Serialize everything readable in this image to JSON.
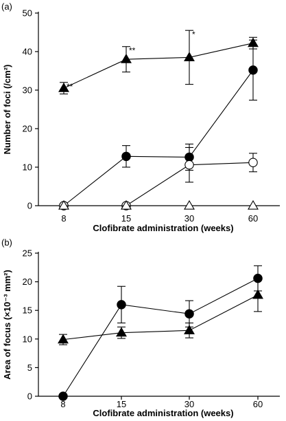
{
  "chart_data": [
    {
      "type": "line",
      "panel_label": "(a)",
      "title": "",
      "xlabel": "Clofibrate administration (weeks)",
      "ylabel": "Number of foci (/cm²)",
      "x_categories": [
        "8",
        "15",
        "30",
        "60"
      ],
      "ylim": [
        0,
        50
      ],
      "yticks": [
        "0",
        "10",
        "20",
        "30",
        "40",
        "50"
      ],
      "grid": false,
      "legend": "none",
      "series": [
        {
          "marker": "filled-triangle",
          "values": [
            30.5,
            38,
            38.5,
            42.2
          ],
          "errors": [
            1.5,
            3.3,
            7,
            1.5
          ],
          "annotations": [
            "**",
            "**",
            "*",
            ""
          ]
        },
        {
          "marker": "filled-circle",
          "values": [
            0,
            12.8,
            12.6,
            35.2
          ],
          "errors": [
            0,
            2.8,
            3.4,
            7.8
          ],
          "annotations": [
            "",
            "",
            "",
            ""
          ]
        },
        {
          "marker": "open-circle",
          "values": [
            0,
            0,
            10.6,
            11.2
          ],
          "errors": [
            0,
            0,
            4.5,
            2.4
          ],
          "annotations": [
            "",
            "",
            "",
            ""
          ]
        },
        {
          "marker": "open-triangle",
          "values": [
            0,
            0,
            0,
            0
          ],
          "errors": [
            0,
            0,
            0,
            0
          ],
          "annotations": [
            "",
            "",
            "",
            ""
          ]
        }
      ]
    },
    {
      "type": "line",
      "panel_label": "(b)",
      "title": "",
      "xlabel": "Clofibrate administration (weeks)",
      "ylabel": "Area of focus (×10⁻³ mm²)",
      "x_categories": [
        "8",
        "15",
        "30",
        "60"
      ],
      "ylim": [
        0,
        25
      ],
      "yticks": [
        "0",
        "5",
        "10",
        "15",
        "20",
        "25"
      ],
      "grid": false,
      "legend": "none",
      "series": [
        {
          "marker": "filled-circle",
          "values": [
            0,
            16,
            14.4,
            20.6
          ],
          "errors": [
            0,
            3.2,
            2.3,
            2.2
          ],
          "annotations": [
            "",
            "",
            "",
            ""
          ]
        },
        {
          "marker": "filled-triangle",
          "values": [
            9.9,
            11.1,
            11.5,
            17.7
          ],
          "errors": [
            0.9,
            1,
            1.3,
            2.9
          ],
          "annotations": [
            "",
            "",
            "",
            ""
          ]
        }
      ]
    }
  ]
}
